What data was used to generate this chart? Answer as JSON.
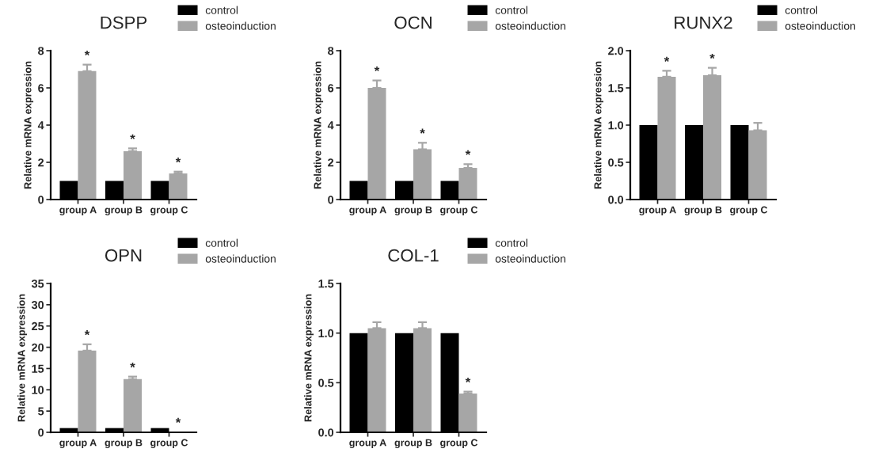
{
  "chart_data": [
    {
      "type": "bar",
      "title": "DSPP",
      "ylabel": "Relative mRNA expression",
      "categories": [
        "group A",
        "group B",
        "group C"
      ],
      "legend": "top right",
      "grid": false,
      "ylim": [
        0,
        8
      ],
      "yticks": [
        0,
        2,
        4,
        6,
        8
      ],
      "series": [
        {
          "name": "control",
          "color": "#000000",
          "values": [
            1,
            1,
            1
          ]
        },
        {
          "name": "osteoinduction",
          "color": "#a6a6a6",
          "values": [
            6.9,
            2.6,
            1.4
          ],
          "errors": [
            0.35,
            0.15,
            0.1
          ],
          "value_labels": [
            "*",
            "*",
            "*"
          ]
        }
      ]
    },
    {
      "type": "bar",
      "title": "OCN",
      "ylabel": "Relative mRNA expression",
      "categories": [
        "group A",
        "group B",
        "group C"
      ],
      "legend": "top right",
      "grid": false,
      "ylim": [
        0,
        8
      ],
      "yticks": [
        0,
        2,
        4,
        6,
        8
      ],
      "series": [
        {
          "name": "control",
          "color": "#000000",
          "values": [
            1,
            1,
            1
          ]
        },
        {
          "name": "osteoinduction",
          "color": "#a6a6a6",
          "values": [
            6.0,
            2.7,
            1.7
          ],
          "errors": [
            0.4,
            0.35,
            0.2
          ],
          "value_labels": [
            "*",
            "*",
            "*"
          ]
        }
      ]
    },
    {
      "type": "bar",
      "title": "RUNX2",
      "ylabel": "Relative mRNA expression",
      "categories": [
        "group A",
        "group B",
        "group C"
      ],
      "legend": "top right",
      "grid": false,
      "ylim": [
        0,
        2
      ],
      "yticks": [
        {
          "value": 0,
          "label": "0.0"
        },
        0.5,
        {
          "value": 1,
          "label": "1.0"
        },
        1.5,
        {
          "value": 2,
          "label": "2.0"
        }
      ],
      "series": [
        {
          "name": "control",
          "color": "#000000",
          "values": [
            1,
            1,
            1
          ]
        },
        {
          "name": "osteoinduction",
          "color": "#a6a6a6",
          "values": [
            1.65,
            1.67,
            0.93
          ],
          "errors": [
            0.08,
            0.1,
            0.1
          ],
          "value_labels": [
            "*",
            "*",
            null
          ]
        }
      ]
    },
    {
      "type": "bar",
      "title": "OPN",
      "ylabel": "Relative mRNA expression",
      "categories": [
        "group A",
        "group B",
        "group C"
      ],
      "legend": "top right",
      "grid": false,
      "ylim": [
        0,
        35
      ],
      "yticks": [
        0,
        5,
        10,
        15,
        20,
        25,
        30,
        35
      ],
      "series": [
        {
          "name": "control",
          "color": "#000000",
          "values": [
            1,
            1,
            1
          ]
        },
        {
          "name": "osteoinduction",
          "color": "#a6a6a6",
          "values": [
            19.2,
            12.5,
            0.1
          ],
          "errors": [
            1.5,
            0.6,
            null
          ],
          "value_labels": [
            "*",
            "*",
            "*"
          ]
        }
      ]
    },
    {
      "type": "bar",
      "title": "COL-1",
      "ylabel": "Relative mRNA expression",
      "categories": [
        "group A",
        "group B",
        "group C"
      ],
      "legend": "top right",
      "grid": false,
      "ylim": [
        0,
        1.5
      ],
      "yticks": [
        {
          "value": 0,
          "label": "0.0"
        },
        0.5,
        {
          "value": 1,
          "label": "1.0"
        },
        1.5
      ],
      "series": [
        {
          "name": "control",
          "color": "#000000",
          "values": [
            1,
            1,
            1
          ]
        },
        {
          "name": "osteoinduction",
          "color": "#a6a6a6",
          "values": [
            1.05,
            1.05,
            0.39
          ],
          "errors": [
            0.06,
            0.06,
            0.02
          ],
          "value_labels": [
            null,
            null,
            "*"
          ]
        }
      ]
    }
  ]
}
